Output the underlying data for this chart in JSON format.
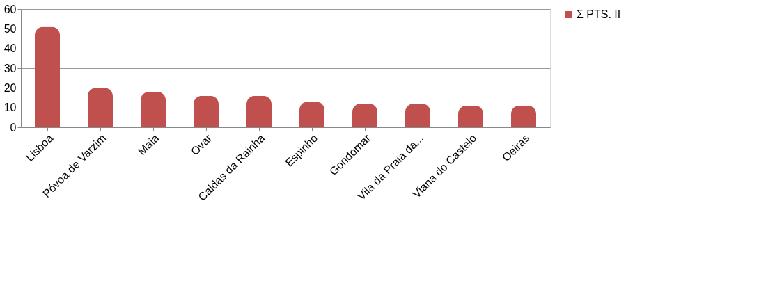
{
  "chart_data": {
    "type": "bar",
    "categories": [
      "Lisboa",
      "Póvoa de Varzim",
      "Maia",
      "Ovar",
      "Caldas da Rainha",
      "Espinho",
      "Gondomar",
      "Vila da Praia da...",
      "Viana do Castelo",
      "Oeiras"
    ],
    "series": [
      {
        "name": "Σ PTS. II",
        "color": "#c0504d",
        "values": [
          51,
          20,
          18,
          16,
          16,
          13,
          12,
          12,
          11,
          11
        ]
      }
    ],
    "ylim": [
      0,
      60
    ],
    "yticks": [
      0,
      10,
      20,
      30,
      40,
      50,
      60
    ],
    "grid": "y",
    "legend": "right"
  }
}
